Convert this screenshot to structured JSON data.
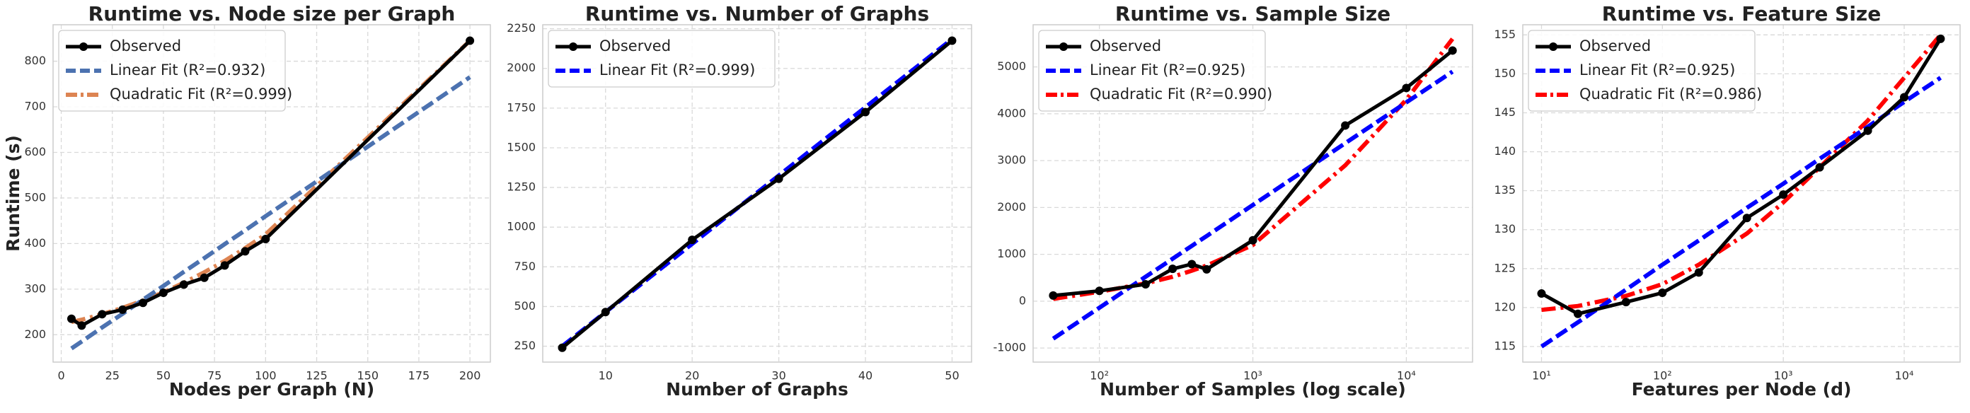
{
  "chart_data": [
    {
      "type": "line",
      "title": "Runtime vs. Node size per Graph",
      "xlabel": "Nodes per Graph (N)",
      "ylabel": "Runtime (s)",
      "x": [
        5,
        10,
        20,
        30,
        40,
        50,
        60,
        70,
        80,
        90,
        100,
        200
      ],
      "series": [
        {
          "name": "Observed",
          "color": "#000000",
          "linestyle": "solid",
          "marker": "o",
          "values": [
            235,
            220,
            245,
            255,
            270,
            292,
            310,
            325,
            352,
            383,
            410,
            845
          ]
        },
        {
          "name": "Linear Fit (R²=0.932)",
          "color": "#4c72b0",
          "linestyle": "dashed",
          "values": [
            170,
            185,
            216,
            246,
            277,
            307,
            338,
            368,
            399,
            429,
            460,
            765
          ]
        },
        {
          "name": "Quadratic Fit (R²=0.999)",
          "color": "#dd8452",
          "linestyle": "dashdot",
          "values": [
            228,
            233,
            245,
            259,
            275,
            293,
            314,
            337,
            362,
            390,
            420,
            845
          ]
        }
      ],
      "xlim": [
        -4,
        210
      ],
      "xticks": [
        0,
        25,
        50,
        75,
        100,
        125,
        150,
        175,
        200
      ],
      "ylim": [
        140,
        880
      ],
      "yticks": [
        200,
        300,
        400,
        500,
        600,
        700,
        800
      ],
      "grid": true,
      "legend": "upper left"
    },
    {
      "type": "line",
      "title": "Runtime vs. Number of Graphs",
      "xlabel": "Number of Graphs",
      "x": [
        5,
        10,
        20,
        30,
        40,
        50
      ],
      "series": [
        {
          "name": "Observed",
          "color": "#000000",
          "linestyle": "solid",
          "marker": "o",
          "values": [
            240,
            465,
            920,
            1305,
            1725,
            2175
          ]
        },
        {
          "name": "Linear Fit (R²=0.999)",
          "color": "#0000ff",
          "linestyle": "dashed",
          "values": [
            250,
            465,
            895,
            1325,
            1755,
            2185
          ]
        }
      ],
      "xlim": [
        2.75,
        52.25
      ],
      "xticks": [
        10,
        20,
        30,
        40,
        50
      ],
      "ylim": [
        150,
        2275
      ],
      "yticks": [
        250,
        500,
        750,
        1000,
        1250,
        1500,
        1750,
        2000,
        2250
      ],
      "grid": true,
      "legend": "upper left"
    },
    {
      "type": "line",
      "title": "Runtime vs. Sample Size",
      "xlabel": "Number of Samples (log scale)",
      "xscale": "log",
      "x": [
        50,
        100,
        200,
        300,
        400,
        500,
        1000,
        4000,
        10000,
        20000
      ],
      "series": [
        {
          "name": "Observed",
          "color": "#000000",
          "linestyle": "solid",
          "marker": "o",
          "values": [
            120,
            220,
            360,
            690,
            790,
            680,
            1300,
            3750,
            4550,
            5350
          ]
        },
        {
          "name": "Linear Fit (R²=0.925)",
          "color": "#0000ff",
          "linestyle": "dashed",
          "values": [
            -800,
            -140,
            520,
            906,
            1180,
            1392,
            2052,
            3371,
            4243,
            4900
          ]
        },
        {
          "name": "Quadratic Fit (R²=0.990)",
          "color": "#ff0000",
          "linestyle": "dashdot",
          "values": [
            50,
            200,
            380,
            520,
            650,
            760,
            1200,
            2900,
            4300,
            5600
          ]
        }
      ],
      "xlim": [
        37,
        27000
      ],
      "xticks": [
        {
          "value": 100,
          "label": "10²"
        },
        {
          "value": 1000,
          "label": "10³"
        },
        {
          "value": 10000,
          "label": "10⁴"
        }
      ],
      "ylim": [
        -1300,
        5900
      ],
      "yticks": [
        -1000,
        0,
        1000,
        2000,
        3000,
        4000,
        5000
      ],
      "grid": true,
      "legend": "upper left"
    },
    {
      "type": "line",
      "title": "Runtime vs. Feature Size",
      "xlabel": "Features per Node (d)",
      "xscale": "log",
      "x": [
        10,
        20,
        50,
        100,
        200,
        500,
        1000,
        2000,
        5000,
        10000,
        20000
      ],
      "series": [
        {
          "name": "Observed",
          "color": "#000000",
          "linestyle": "solid",
          "marker": "o",
          "values": [
            121.8,
            119.2,
            120.7,
            121.9,
            124.5,
            131.5,
            134.5,
            138,
            142.7,
            147,
            154.5
          ]
        },
        {
          "name": "Linear Fit (R²=0.925)",
          "color": "#0000ff",
          "linestyle": "dashed",
          "values": [
            115,
            118.1,
            122.3,
            125.5,
            128.6,
            132.8,
            135.9,
            139.1,
            143.2,
            146.4,
            149.5
          ]
        },
        {
          "name": "Quadratic Fit (R²=0.986)",
          "color": "#ff0000",
          "linestyle": "dashdot",
          "values": [
            119.7,
            120.2,
            121.5,
            123,
            125.5,
            129.5,
            133.5,
            138,
            144,
            149.5,
            155
          ]
        }
      ],
      "xlim": [
        7,
        29000
      ],
      "xticks": [
        {
          "value": 10,
          "label": "10¹"
        },
        {
          "value": 100,
          "label": "10²"
        },
        {
          "value": 1000,
          "label": "10³"
        },
        {
          "value": 10000,
          "label": "10⁴"
        }
      ],
      "ylim": [
        113,
        156.3
      ],
      "yticks": [
        115,
        120,
        125,
        130,
        135,
        140,
        145,
        150,
        155
      ],
      "grid": true,
      "legend": "upper left"
    }
  ]
}
